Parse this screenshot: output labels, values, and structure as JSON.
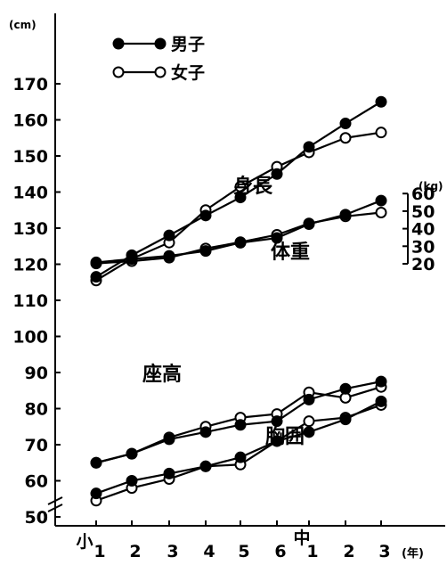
{
  "chart_data": {
    "type": "line",
    "categories": [
      "1",
      "2",
      "3",
      "4",
      "5",
      "6",
      "1",
      "2",
      "3"
    ],
    "school_labels": [
      "小",
      "中"
    ],
    "x_unit": "(年)",
    "left_axis": {
      "unit": "(cm)",
      "ticks": [
        0,
        50,
        60,
        70,
        80,
        90,
        100,
        110,
        120,
        130,
        140,
        150,
        160,
        170
      ],
      "ylim": [
        50,
        170
      ],
      "axis_break": true
    },
    "right_axis": {
      "unit": "(kg)",
      "ticks": [
        20,
        30,
        40,
        50,
        60
      ],
      "ylim": [
        20,
        60
      ]
    },
    "legend": {
      "boys": "男子",
      "girls": "女子"
    },
    "groups": [
      {
        "label": "身長",
        "axis": "left",
        "boys": [
          116.5,
          122.5,
          128.0,
          133.5,
          138.5,
          145.0,
          152.5,
          159.0,
          165.0
        ],
        "girls": [
          115.5,
          121.5,
          126.0,
          135.0,
          141.5,
          147.0,
          151.0,
          155.0,
          156.5
        ]
      },
      {
        "label": "体重",
        "axis": "right",
        "boys": [
          20.8,
          22.7,
          24.5,
          27.3,
          32.0,
          34.7,
          42.6,
          48.0,
          56.0
        ],
        "girls": [
          20.2,
          21.5,
          23.5,
          28.7,
          32.3,
          36.5,
          43.0,
          47.0,
          49.2
        ]
      },
      {
        "label": "座高",
        "axis": "left",
        "boys": [
          65.0,
          67.5,
          71.5,
          73.5,
          75.5,
          76.5,
          82.5,
          85.5,
          87.5
        ],
        "girls": [
          65.0,
          67.5,
          72.0,
          75.0,
          77.5,
          78.5,
          84.5,
          83.0,
          86.0
        ]
      },
      {
        "label": "胸囲",
        "axis": "left",
        "boys": [
          56.5,
          60.0,
          62.0,
          64.0,
          66.5,
          71.0,
          73.5,
          77.0,
          82.0
        ],
        "girls": [
          54.5,
          58.0,
          60.5,
          64.0,
          64.5,
          71.0,
          76.5,
          77.5,
          81.0
        ]
      }
    ]
  }
}
